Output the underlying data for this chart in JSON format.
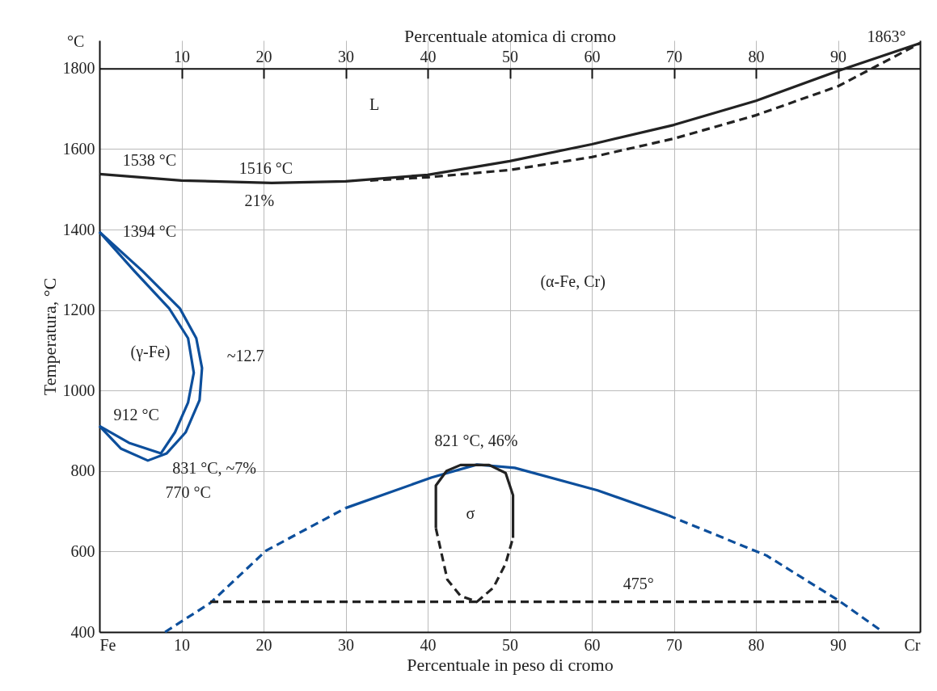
{
  "chart_data": {
    "type": "line",
    "xlabel": "Percentuale in peso di cromo",
    "ylabel": "Temperatura, °C",
    "x2label": "Percentuale atomica di cromo",
    "xlim": [
      0,
      100
    ],
    "ylim": [
      400,
      1870
    ],
    "x2lim": [
      0,
      100
    ],
    "xticks": [
      {
        "value": 0,
        "label": "Fe"
      },
      10,
      20,
      30,
      40,
      50,
      60,
      70,
      80,
      90,
      {
        "value": 100,
        "label": "Cr"
      }
    ],
    "yticks": [
      400,
      600,
      800,
      1000,
      1200,
      1400,
      1600,
      1800
    ],
    "x2ticks": [
      10,
      20,
      30,
      40,
      50,
      60,
      70,
      80,
      90
    ],
    "grid": true,
    "marker": "none",
    "series": [
      {
        "type": "line",
        "color": "#222222",
        "line_style": "solid",
        "x": [
          0,
          10,
          21,
          30,
          40,
          50,
          60,
          70,
          80,
          90,
          100
        ],
        "values": [
          1538,
          1522,
          1516,
          1520,
          1536,
          1570,
          1612,
          1660,
          1720,
          1794,
          1863
        ]
      },
      {
        "type": "line",
        "color": "#222222",
        "line_style": "dashed",
        "x": [
          33,
          40,
          50,
          60,
          70,
          80,
          90,
          100
        ],
        "values": [
          1522,
          1530,
          1548,
          1580,
          1626,
          1684,
          1756,
          1863
        ]
      },
      {
        "type": "line",
        "color": "#0d4f9c",
        "line_style": "solid",
        "x": [
          0,
          5.3,
          9.8,
          11.8,
          12.5,
          12.2,
          10.5,
          8.2,
          5.9,
          2.6,
          0
        ],
        "values": [
          1394,
          1296,
          1204,
          1130,
          1056,
          976,
          896,
          844,
          826,
          856,
          912
        ]
      },
      {
        "type": "line",
        "color": "#0d4f9c",
        "line_style": "solid",
        "x": [
          0,
          4.3,
          8.5,
          10.8,
          11.5,
          10.8,
          9.2,
          7.5,
          3.6,
          0
        ],
        "values": [
          1394,
          1296,
          1204,
          1130,
          1044,
          970,
          896,
          844,
          870,
          912
        ]
      },
      {
        "type": "line",
        "color": "#0d4f9c",
        "line_style": "dashed",
        "x": [
          8,
          13.5,
          20.3,
          30
        ],
        "values": [
          400,
          472,
          602,
          708
        ]
      },
      {
        "type": "line",
        "color": "#0d4f9c",
        "line_style": "solid",
        "x": [
          30,
          40.5,
          46,
          50.6,
          60.7,
          69.3
        ],
        "values": [
          708,
          784,
          816,
          808,
          752,
          690
        ]
      },
      {
        "type": "line",
        "color": "#0d4f9c",
        "line_style": "dashed",
        "x": [
          69.3,
          81.3,
          90.1,
          95.5
        ],
        "values": [
          690,
          590,
          478,
          400
        ]
      },
      {
        "type": "line",
        "color": "#222222",
        "line_style": "solid",
        "x": [
          41,
          41,
          42.3,
          44,
          47.5,
          49.5,
          50.4,
          50.4
        ],
        "values": [
          658,
          764,
          800,
          815,
          815,
          795,
          740,
          634
        ]
      },
      {
        "type": "line",
        "color": "#222222",
        "line_style": "dashed",
        "x": [
          41,
          42.4,
          44,
          46,
          48,
          49.5,
          50.4
        ],
        "values": [
          658,
          530,
          490,
          475,
          510,
          570,
          634
        ]
      },
      {
        "type": "line",
        "color": "#222222",
        "line_style": "dashed",
        "x": [
          13.5,
          90.1
        ],
        "values": [
          475,
          475
        ]
      }
    ],
    "annotations": [
      "°C",
      "L",
      "1538 °C",
      "1516 °C",
      "21%",
      "1394 °C",
      "(α-Fe, Cr)",
      "(γ-Fe)",
      "~12.7",
      "912 °C",
      "831 °C, ~7%",
      "770 °C",
      "821 °C, 46%",
      "σ",
      "475°",
      "1863°"
    ]
  }
}
